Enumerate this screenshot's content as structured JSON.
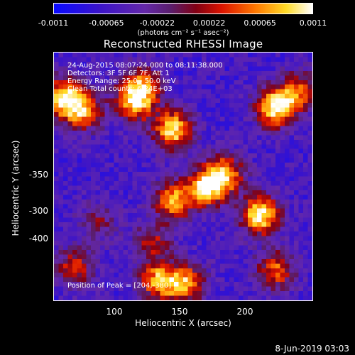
{
  "colorbar": {
    "ticks": [
      "-0.0011",
      "-0.00065",
      "-0.00022",
      "0.00022",
      "0.00065",
      "0.0011"
    ],
    "units": "(photons cm⁻² s⁻¹ asec⁻²)",
    "range": [
      -0.0011,
      0.0011
    ]
  },
  "plot": {
    "title": "Reconstructed RHESSI Image",
    "info_lines": [
      "24-Aug-2015 08:07:24.000 to 08:11:38.000",
      "Detectors: 3F 5F 6F 7F, Att 1",
      "Energy Range: 25.0 - 50.0 keV",
      "Clean     Total counts: 6.24E+03"
    ],
    "peak_label": "Position of Peak = [204,-380]",
    "xlabel": "Heliocentric X (arcsec)",
    "ylabel": "Heliocentric Y (arcsec)",
    "xticks": [
      "100",
      "150",
      "200"
    ],
    "yticks": [
      "-300",
      "-350",
      "-400"
    ],
    "footer_date": "8-Jun-2019 03:03"
  },
  "chart_data": {
    "type": "heatmap",
    "title": "Reconstructed RHESSI Image",
    "xlabel": "Heliocentric X (arcsec)",
    "ylabel": "Heliocentric Y (arcsec)",
    "xlim": [
      53,
      242
    ],
    "ylim": [
      -442,
      -262
    ],
    "colorbar_range": [
      -0.0011,
      0.0011
    ],
    "colormap": "rainbow-like (blue-purple-red-yellow-white)",
    "peak_position": [
      204,
      -380
    ],
    "sources": [
      {
        "x": 60,
        "y": -295,
        "intensity": 0.95
      },
      {
        "x": 75,
        "y": -305,
        "intensity": 0.7
      },
      {
        "x": 112,
        "y": -298,
        "intensity": 0.85
      },
      {
        "x": 140,
        "y": -318,
        "intensity": 0.95
      },
      {
        "x": 165,
        "y": -360,
        "intensity": 0.9
      },
      {
        "x": 140,
        "y": -370,
        "intensity": 0.8
      },
      {
        "x": 178,
        "y": -350,
        "intensity": 0.75
      },
      {
        "x": 204,
        "y": -380,
        "intensity": 1.0
      },
      {
        "x": 215,
        "y": -302,
        "intensity": 1.0
      },
      {
        "x": 232,
        "y": -290,
        "intensity": 0.6
      },
      {
        "x": 215,
        "y": -420,
        "intensity": 0.65
      },
      {
        "x": 130,
        "y": -428,
        "intensity": 0.8
      },
      {
        "x": 150,
        "y": -430,
        "intensity": 0.75
      },
      {
        "x": 68,
        "y": -418,
        "intensity": 0.55
      },
      {
        "x": 85,
        "y": -385,
        "intensity": 0.35
      },
      {
        "x": 125,
        "y": -400,
        "intensity": 0.45
      },
      {
        "x": 118,
        "y": -285,
        "intensity": 0.6
      }
    ]
  }
}
